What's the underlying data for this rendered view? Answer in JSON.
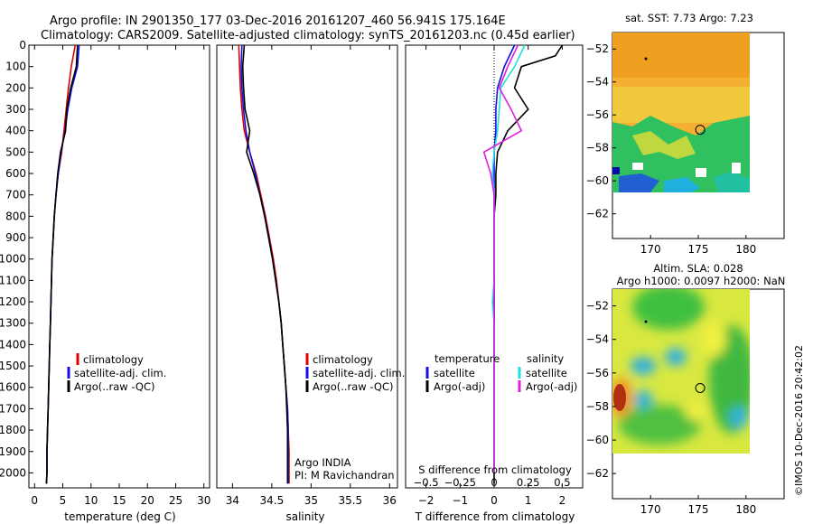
{
  "header": {
    "line1": "Argo profile: IN 2901350_177 03-Dec-2016 20161207_460 56.941S 175.164E",
    "line2": "Climatology: CARS2009. Satellite-adjusted climatology: synTS_20161203.nc (0.45d earlier)"
  },
  "colors": {
    "climatology": "#e00000",
    "satellite": "#1010e0",
    "argo": "#000000",
    "sal_satellite": "#20e0e0",
    "sal_argo": "#e020e0"
  },
  "chart_data": [
    {
      "type": "line",
      "id": "temperature",
      "xlabel": "temperature (deg C)",
      "xlim": [
        -1,
        31
      ],
      "ylim": [
        0,
        2070
      ],
      "xticks": [
        0,
        5,
        10,
        15,
        20,
        25,
        30
      ],
      "yticks": [
        0,
        100,
        200,
        300,
        400,
        500,
        600,
        700,
        800,
        900,
        1000,
        1100,
        1200,
        1300,
        1400,
        1500,
        1600,
        1700,
        1800,
        1900,
        2000
      ],
      "legend": [
        "climatology",
        "satellite-adj. clim.",
        "Argo(..raw -QC)"
      ],
      "legend_position": "lower-middle",
      "series": [
        {
          "name": "climatology",
          "color": "#e00000",
          "x": [
            7.2,
            6.5,
            6.0,
            5.6,
            5.2,
            4.8,
            4.2,
            3.8,
            3.5,
            3.3,
            3.1,
            3.0,
            2.9,
            2.8,
            2.7,
            2.6,
            2.5,
            2.4,
            2.3,
            2.2,
            2.2,
            2.1
          ],
          "y": [
            0,
            100,
            200,
            300,
            400,
            500,
            600,
            700,
            800,
            900,
            1000,
            1100,
            1200,
            1300,
            1400,
            1500,
            1600,
            1700,
            1800,
            1900,
            2000,
            2050
          ]
        },
        {
          "name": "satellite-adj. clim.",
          "color": "#1010e0",
          "x": [
            7.9,
            7.6,
            6.6,
            5.9,
            5.4,
            4.7,
            4.2,
            3.8,
            3.5,
            3.3,
            3.1,
            3.0,
            2.9,
            2.8,
            2.7,
            2.6,
            2.5,
            2.4,
            2.3,
            2.2,
            2.2,
            2.1
          ],
          "y": [
            0,
            100,
            200,
            300,
            400,
            500,
            600,
            700,
            800,
            900,
            1000,
            1100,
            1200,
            1300,
            1400,
            1500,
            1600,
            1700,
            1800,
            1900,
            2000,
            2050
          ]
        },
        {
          "name": "Argo(..raw -QC)",
          "color": "#000000",
          "x": [
            7.6,
            7.4,
            6.4,
            5.7,
            5.5,
            4.6,
            4.1,
            3.8,
            3.5,
            3.3,
            3.1,
            3.0,
            2.9,
            2.8,
            2.7,
            2.6,
            2.5,
            2.4,
            2.3,
            2.2,
            2.2,
            2.1
          ],
          "y": [
            0,
            100,
            200,
            300,
            400,
            500,
            600,
            700,
            800,
            900,
            1000,
            1100,
            1200,
            1300,
            1400,
            1500,
            1600,
            1700,
            1800,
            1900,
            2000,
            2050
          ]
        }
      ]
    },
    {
      "type": "line",
      "id": "salinity",
      "xlabel": "salinity",
      "xlim": [
        33.8,
        36.1
      ],
      "ylim": [
        0,
        2070
      ],
      "xticks": [
        34,
        34.5,
        35,
        35.5,
        36
      ],
      "legend": [
        "climatology",
        "satellite-adj. clim.",
        "Argo(..raw -QC)"
      ],
      "legend_position": "lower-right",
      "annotation": [
        "Argo INDIA",
        "PI: M Ravichandran"
      ],
      "series": [
        {
          "name": "climatology",
          "color": "#e00000",
          "x": [
            34.08,
            34.09,
            34.1,
            34.12,
            34.15,
            34.22,
            34.3,
            34.36,
            34.42,
            34.47,
            34.52,
            34.56,
            34.59,
            34.62,
            34.64,
            34.66,
            34.68,
            34.7,
            34.71,
            34.72,
            34.72,
            34.72
          ],
          "y": [
            0,
            100,
            200,
            300,
            400,
            500,
            600,
            700,
            800,
            900,
            1000,
            1100,
            1200,
            1300,
            1400,
            1500,
            1600,
            1700,
            1800,
            1900,
            2000,
            2050
          ]
        },
        {
          "name": "satellite-adj. clim.",
          "color": "#1010e0",
          "x": [
            34.12,
            34.11,
            34.12,
            34.14,
            34.17,
            34.22,
            34.29,
            34.35,
            34.41,
            34.46,
            34.51,
            34.55,
            34.59,
            34.62,
            34.64,
            34.66,
            34.68,
            34.7,
            34.71,
            34.71,
            34.71,
            34.71
          ],
          "y": [
            0,
            100,
            200,
            300,
            400,
            500,
            600,
            700,
            800,
            900,
            1000,
            1100,
            1200,
            1300,
            1400,
            1500,
            1600,
            1700,
            1800,
            1900,
            2000,
            2050
          ]
        },
        {
          "name": "Argo(..raw -QC)",
          "color": "#000000",
          "x": [
            34.15,
            34.13,
            34.14,
            34.16,
            34.22,
            34.18,
            34.27,
            34.35,
            34.41,
            34.46,
            34.51,
            34.55,
            34.59,
            34.62,
            34.64,
            34.66,
            34.68,
            34.69,
            34.7,
            34.7,
            34.7,
            34.7
          ],
          "y": [
            0,
            100,
            200,
            300,
            400,
            500,
            600,
            700,
            800,
            900,
            1000,
            1100,
            1200,
            1300,
            1400,
            1500,
            1600,
            1700,
            1800,
            1900,
            2000,
            2050
          ]
        }
      ]
    },
    {
      "type": "line",
      "id": "difference",
      "xlabel": "T difference from climatology",
      "xlabel_top": "S difference from climatology",
      "xlim": [
        -2.6,
        2.6
      ],
      "ylim": [
        0,
        2070
      ],
      "xticks": [
        -2,
        -1,
        0,
        1,
        2
      ],
      "xticks_s": [
        -0.5,
        -0.25,
        0,
        0.25,
        0.5
      ],
      "xticks_s_labels": [
        "−0.5",
        "−0.25",
        "0",
        "0.25",
        "0.5"
      ],
      "legend_titles": [
        "temperature",
        "salinity"
      ],
      "legend": [
        "satellite",
        "Argo(-adj)",
        "satellite",
        "Argo(-adj)"
      ],
      "legend_position": "lower-middle",
      "series": [
        {
          "name": "temperature satellite",
          "color": "#1010e0",
          "x": [
            0.6,
            0.3,
            0.1,
            0.05,
            0.05,
            0.0,
            0.0,
            0.0,
            0.0,
            0.0,
            0.0,
            0.0,
            0.0,
            0.0,
            0.0,
            0.0,
            0.0,
            0.0,
            0.0,
            0.0,
            0.0
          ],
          "y": [
            0,
            100,
            200,
            300,
            400,
            500,
            600,
            700,
            800,
            900,
            1000,
            1100,
            1200,
            1300,
            1400,
            1500,
            1600,
            1700,
            1800,
            1900,
            2000
          ]
        },
        {
          "name": "temperature Argo(-adj)",
          "color": "#000000",
          "x": [
            2.0,
            1.8,
            0.8,
            0.6,
            1.0,
            0.4,
            0.1,
            0.05,
            0.05,
            0.0,
            0.0,
            0.0,
            0.0,
            0.0,
            0.0,
            0.0,
            0.0,
            0.0,
            0.0,
            0.0,
            0.0
          ],
          "y": [
            0,
            50,
            100,
            200,
            300,
            400,
            500,
            600,
            700,
            800,
            900,
            1000,
            1200,
            1400,
            1600,
            1800,
            1900,
            1950,
            2000,
            2030,
            2050
          ]
        },
        {
          "name": "salinity satellite",
          "color": "#20e0e0",
          "x": [
            0.9,
            0.6,
            0.2,
            0.15,
            0.1,
            0.0,
            -0.05,
            0.0,
            0.0,
            0.0,
            0.0,
            0.0,
            -0.05,
            0.0,
            0.0,
            0.0,
            0.0,
            0.0,
            0.0,
            0.0,
            0.0
          ],
          "y": [
            0,
            100,
            200,
            300,
            400,
            500,
            600,
            700,
            800,
            900,
            1000,
            1100,
            1200,
            1300,
            1400,
            1500,
            1600,
            1700,
            1800,
            1900,
            2000
          ]
        },
        {
          "name": "salinity Argo(-adj)",
          "color": "#e020e0",
          "x": [
            0.7,
            0.4,
            0.15,
            0.5,
            0.8,
            -0.3,
            -0.1,
            0.0,
            0.0,
            0.0,
            0.0,
            0.0,
            0.0,
            0.0,
            0.0,
            0.0,
            0.0,
            0.0,
            0.0,
            0.0,
            0.0
          ],
          "y": [
            0,
            100,
            200,
            300,
            400,
            500,
            600,
            700,
            800,
            900,
            1000,
            1100,
            1200,
            1300,
            1400,
            1500,
            1600,
            1700,
            1800,
            1900,
            2000
          ]
        }
      ]
    },
    {
      "type": "heatmap",
      "id": "sst_map",
      "title": "sat. SST: 7.73 Argo: 7.23",
      "xlim": [
        166,
        184
      ],
      "ylim": [
        -63.5,
        -51
      ],
      "xticks": [
        170,
        175,
        180
      ],
      "yticks": [
        -52,
        -54,
        -56,
        -58,
        -60,
        -62
      ],
      "float_position": [
        175.2,
        -56.9
      ]
    },
    {
      "type": "heatmap",
      "id": "sla_map",
      "title": "Altim. SLA: 0.028",
      "subtitle": "Argo h1000: 0.0097 h2000: NaN",
      "xlim": [
        166,
        184
      ],
      "ylim": [
        -63.5,
        -51
      ],
      "xticks": [
        170,
        175,
        180
      ],
      "yticks": [
        -52,
        -54,
        -56,
        -58,
        -60,
        -62
      ],
      "float_position": [
        175.2,
        -56.9
      ]
    }
  ],
  "credit": "©IMOS 10-Dec-2016 20:42:02"
}
